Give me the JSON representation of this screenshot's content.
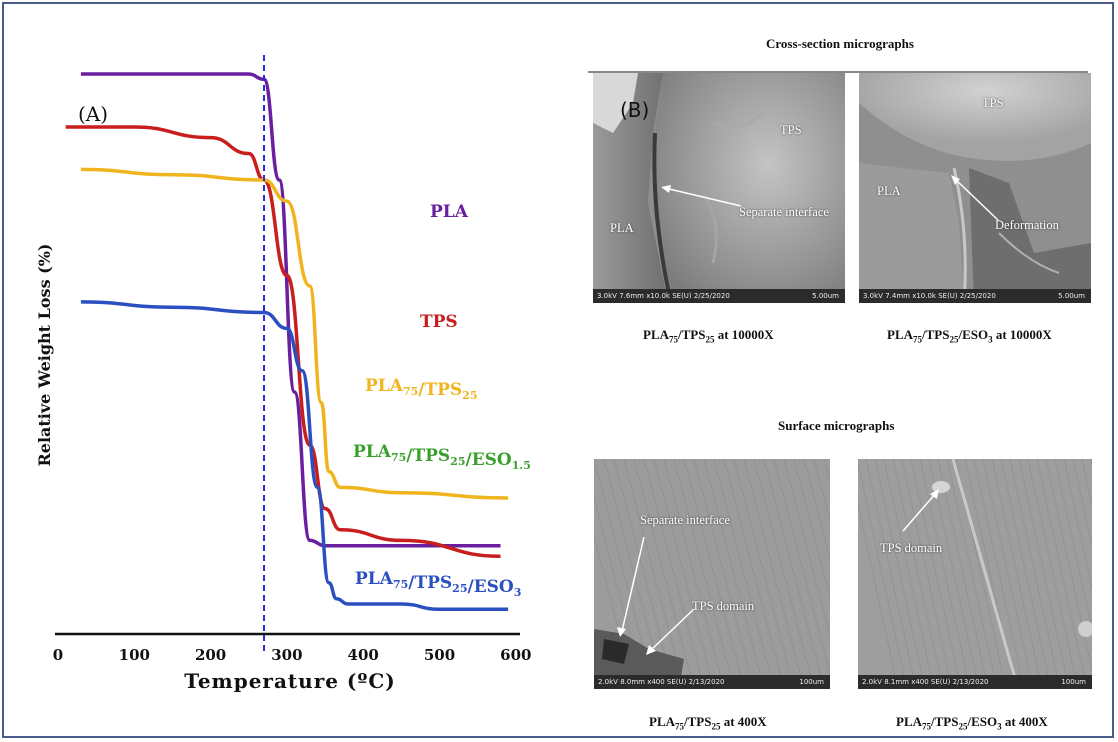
{
  "chart_data": {
    "type": "line",
    "panel_label": "(A)",
    "xlabel": "Temperature (ºC)",
    "ylabel": "Relative Weight Loss (%)",
    "xlim": [
      0,
      620
    ],
    "x_ticks": [
      "0",
      "100",
      "200",
      "300",
      "400",
      "500",
      "600"
    ],
    "marker_line_x": 270,
    "series": [
      {
        "name_main": "PLA",
        "name_parts": [
          [
            "PLA",
            ""
          ]
        ],
        "color": "#6a1fa0",
        "x": [
          30,
          150,
          250,
          270,
          290,
          310,
          330,
          350,
          450,
          580
        ],
        "y": [
          100,
          100,
          100,
          99,
          80,
          40,
          12,
          11,
          11,
          11
        ]
      },
      {
        "name_parts": [
          [
            "TPS",
            ""
          ]
        ],
        "color": "#c81e1e",
        "x": [
          10,
          100,
          200,
          250,
          270,
          300,
          330,
          350,
          370,
          450,
          580
        ],
        "y": [
          90,
          90,
          88,
          85,
          80,
          62,
          30,
          18,
          14,
          12,
          9
        ]
      },
      {
        "name_parts": [
          [
            "PLA",
            "75"
          ],
          [
            "/TPS",
            "25"
          ]
        ],
        "color": "#f0b51e",
        "x": [
          30,
          150,
          270,
          300,
          330,
          345,
          355,
          370,
          450,
          590
        ],
        "y": [
          82,
          81,
          80,
          76,
          60,
          38,
          25,
          22,
          21,
          20
        ]
      },
      {
        "name_parts": [
          [
            "PLA",
            "75"
          ],
          [
            "/TPS",
            "25"
          ],
          [
            "/ESO",
            "1.5"
          ]
        ],
        "color": "#3aa02c",
        "legend_only": true
      },
      {
        "name_parts": [
          [
            "PLA",
            "75"
          ],
          [
            "/TPS",
            "25"
          ],
          [
            "/ESO",
            "3"
          ]
        ],
        "color": "#2a4fc0",
        "x": [
          30,
          150,
          270,
          300,
          320,
          340,
          355,
          365,
          380,
          450,
          500,
          590
        ],
        "y": [
          57,
          56,
          55,
          52,
          44,
          22,
          4,
          1,
          0,
          0,
          -1,
          -1
        ]
      }
    ]
  },
  "micrographs": {
    "panel_label": "(B)",
    "cross_section_heading": "Cross-section micrographs",
    "surface_heading": "Surface micrographs",
    "images": [
      {
        "caption": [
          "PLA",
          "75",
          "/TPS",
          "25",
          " at 10000X"
        ],
        "labels": {
          "a": "TPS",
          "b": "PLA",
          "c": "Separate interface"
        },
        "bar_text": "3.0kV 7.6mm x10.0k SE(U) 2/25/2020",
        "scale": "5.00um"
      },
      {
        "caption": [
          "PLA",
          "75",
          "/TPS",
          "25",
          "/ESO",
          "3",
          " at 10000X"
        ],
        "labels": {
          "a": "TPS",
          "b": "PLA",
          "c": "Deformation"
        },
        "bar_text": "3.0kV 7.4mm x10.0k SE(U) 2/25/2020",
        "scale": "5.00um"
      },
      {
        "caption": [
          "PLA",
          "75",
          "/TPS",
          "25",
          " at 400X"
        ],
        "labels": {
          "a": "Separate interface",
          "b": "TPS domain"
        },
        "bar_text": "2.0kV 8.0mm x400 SE(U) 2/13/2020",
        "scale": "100um"
      },
      {
        "caption": [
          "PLA",
          "75",
          "/TPS",
          "25",
          "/ESO",
          "3",
          " at 400X"
        ],
        "labels": {
          "a": "TPS domain"
        },
        "bar_text": "2.0kV 8.1mm x400 SE(U) 2/13/2020",
        "scale": "100um"
      }
    ]
  }
}
